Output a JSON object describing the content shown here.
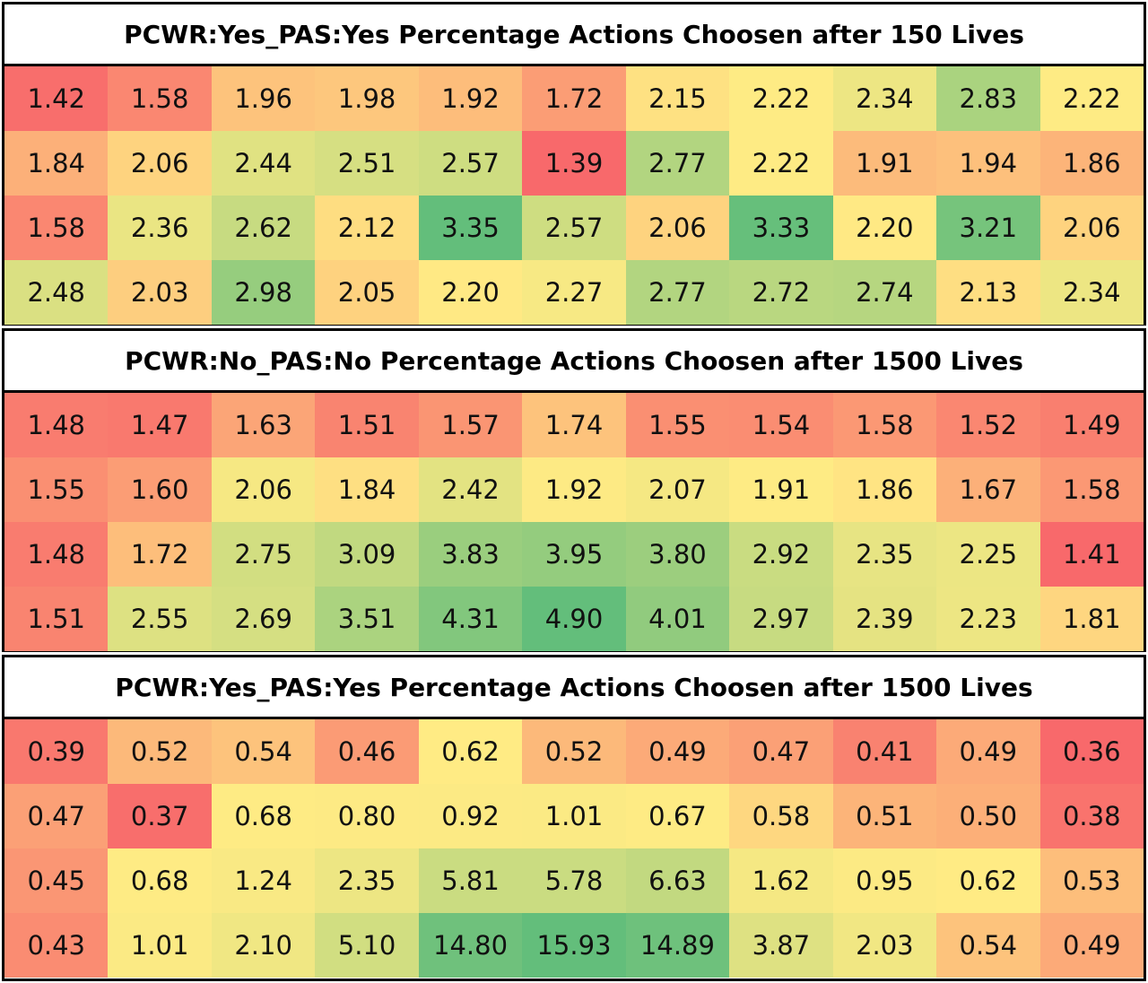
{
  "chart_data": [
    {
      "type": "heatmap",
      "title": "PCWR:Yes_PAS:Yes Percentage Actions Choosen after 150 Lives",
      "rows": [
        [
          1.42,
          1.58,
          1.96,
          1.98,
          1.92,
          1.72,
          2.15,
          2.22,
          2.34,
          2.83,
          2.22
        ],
        [
          1.84,
          2.06,
          2.44,
          2.51,
          2.57,
          1.39,
          2.77,
          2.22,
          1.91,
          1.94,
          1.86
        ],
        [
          1.58,
          2.36,
          2.62,
          2.12,
          3.35,
          2.57,
          2.06,
          3.33,
          2.2,
          3.21,
          2.06
        ],
        [
          2.48,
          2.03,
          2.98,
          2.05,
          2.2,
          2.27,
          2.77,
          2.72,
          2.74,
          2.13,
          2.34
        ]
      ]
    },
    {
      "type": "heatmap",
      "title": "PCWR:No_PAS:No Percentage Actions Choosen after 1500 Lives",
      "rows": [
        [
          1.48,
          1.47,
          1.63,
          1.51,
          1.57,
          1.74,
          1.55,
          1.54,
          1.58,
          1.52,
          1.49
        ],
        [
          1.55,
          1.6,
          2.06,
          1.84,
          2.42,
          1.92,
          2.07,
          1.91,
          1.86,
          1.67,
          1.58
        ],
        [
          1.48,
          1.72,
          2.75,
          3.09,
          3.83,
          3.95,
          3.8,
          2.92,
          2.35,
          2.25,
          1.41
        ],
        [
          1.51,
          2.55,
          2.69,
          3.51,
          4.31,
          4.9,
          4.01,
          2.97,
          2.39,
          2.23,
          1.81
        ]
      ]
    },
    {
      "type": "heatmap",
      "title": "PCWR:Yes_PAS:Yes Percentage Actions Choosen after 1500 Lives",
      "rows": [
        [
          0.39,
          0.52,
          0.54,
          0.46,
          0.62,
          0.52,
          0.49,
          0.47,
          0.41,
          0.49,
          0.36
        ],
        [
          0.47,
          0.37,
          0.68,
          0.8,
          0.92,
          1.01,
          0.67,
          0.58,
          0.51,
          0.5,
          0.38
        ],
        [
          0.45,
          0.68,
          1.24,
          2.35,
          5.81,
          5.78,
          6.63,
          1.62,
          0.95,
          0.62,
          0.53
        ],
        [
          0.43,
          1.01,
          2.1,
          5.1,
          14.8,
          15.93,
          14.89,
          3.87,
          2.03,
          0.54,
          0.49
        ]
      ]
    }
  ],
  "colors": {
    "low": "#f8696b",
    "mid": "#ffeb84",
    "high": "#63be7b"
  }
}
